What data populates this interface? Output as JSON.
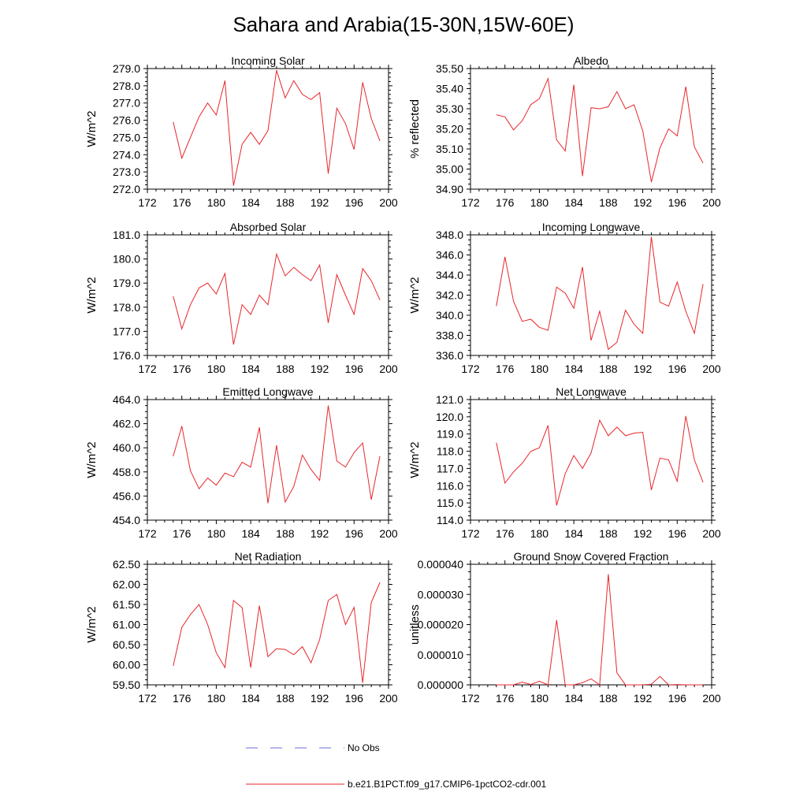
{
  "title": "Sahara and Arabia(15-30N,15W-60E)",
  "colors": {
    "model": "#e8262b",
    "obs": "#6b6bd6",
    "axis": "#000000"
  },
  "legend": {
    "items": [
      {
        "label": "No Obs",
        "style": "dashed",
        "color": "#6b6bd6"
      },
      {
        "label": "b.e21.B1PCT.f09_g17.CMIP6-1pctCO2-cdr.001",
        "style": "solid",
        "color": "#e8262b"
      }
    ]
  },
  "chart_data": [
    {
      "type": "line",
      "title": "Incoming Solar",
      "ylabel": "W/m^2",
      "xlim": [
        172,
        200
      ],
      "ylim": [
        272.0,
        279.0
      ],
      "xticks": [
        172,
        176,
        180,
        184,
        188,
        192,
        196,
        200
      ],
      "yticks": [
        "272.0",
        "273.0",
        "274.0",
        "275.0",
        "276.0",
        "277.0",
        "278.0",
        "279.0"
      ],
      "x": [
        175,
        176,
        177,
        178,
        179,
        180,
        181,
        182,
        183,
        184,
        185,
        186,
        187,
        188,
        189,
        190,
        191,
        192,
        193,
        194,
        195,
        196,
        197,
        198,
        199
      ],
      "series": [
        {
          "values": [
            275.9,
            273.8,
            275.0,
            276.2,
            277.0,
            276.3,
            278.3,
            272.2,
            274.6,
            275.3,
            274.6,
            275.4,
            278.9,
            277.3,
            278.3,
            277.5,
            277.2,
            277.6,
            272.9,
            276.7,
            275.8,
            274.3,
            278.2,
            276.1,
            274.8
          ]
        }
      ]
    },
    {
      "type": "line",
      "title": "Albedo",
      "ylabel": "% reflected",
      "xlim": [
        172,
        200
      ],
      "ylim": [
        34.9,
        35.5
      ],
      "xticks": [
        172,
        176,
        180,
        184,
        188,
        192,
        196,
        200
      ],
      "yticks": [
        "34.90",
        "35.00",
        "35.10",
        "35.20",
        "35.30",
        "35.40",
        "35.50"
      ],
      "x": [
        175,
        176,
        177,
        178,
        179,
        180,
        181,
        182,
        183,
        184,
        185,
        186,
        187,
        188,
        189,
        190,
        191,
        192,
        193,
        194,
        195,
        196,
        197,
        198,
        199
      ],
      "series": [
        {
          "values": [
            35.27,
            35.26,
            35.195,
            35.24,
            35.32,
            35.35,
            35.45,
            35.145,
            35.09,
            35.42,
            34.965,
            35.305,
            35.3,
            35.31,
            35.385,
            35.3,
            35.32,
            35.19,
            34.935,
            35.105,
            35.2,
            35.165,
            35.41,
            35.11,
            35.03
          ]
        }
      ]
    },
    {
      "type": "line",
      "title": "Absorbed Solar",
      "ylabel": "W/m^2",
      "xlim": [
        172,
        200
      ],
      "ylim": [
        176.0,
        181.0
      ],
      "xticks": [
        172,
        176,
        180,
        184,
        188,
        192,
        196,
        200
      ],
      "yticks": [
        "176.0",
        "177.0",
        "178.0",
        "179.0",
        "180.0",
        "181.0"
      ],
      "x": [
        175,
        176,
        177,
        178,
        179,
        180,
        181,
        182,
        183,
        184,
        185,
        186,
        187,
        188,
        189,
        190,
        191,
        192,
        193,
        194,
        195,
        196,
        197,
        198,
        199
      ],
      "series": [
        {
          "values": [
            178.45,
            177.1,
            178.1,
            178.8,
            179.0,
            178.55,
            179.4,
            176.45,
            178.1,
            177.7,
            178.5,
            178.1,
            180.2,
            179.3,
            179.65,
            179.35,
            179.1,
            179.75,
            177.35,
            179.35,
            178.5,
            177.7,
            179.6,
            179.1,
            178.3
          ]
        }
      ]
    },
    {
      "type": "line",
      "title": "Incoming Longwave",
      "ylabel": "W/m^2",
      "xlim": [
        172,
        200
      ],
      "ylim": [
        336.0,
        348.0
      ],
      "xticks": [
        172,
        176,
        180,
        184,
        188,
        192,
        196,
        200
      ],
      "yticks": [
        "336.0",
        "338.0",
        "340.0",
        "342.0",
        "344.0",
        "346.0",
        "348.0"
      ],
      "x": [
        175,
        176,
        177,
        178,
        179,
        180,
        181,
        182,
        183,
        184,
        185,
        186,
        187,
        188,
        189,
        190,
        191,
        192,
        193,
        194,
        195,
        196,
        197,
        198,
        199
      ],
      "series": [
        {
          "values": [
            340.9,
            345.8,
            341.4,
            339.4,
            339.6,
            338.8,
            338.5,
            342.8,
            342.2,
            340.7,
            344.8,
            337.5,
            340.4,
            336.6,
            337.3,
            340.5,
            339.1,
            338.2,
            347.8,
            341.3,
            340.9,
            343.3,
            340.4,
            338.2,
            343.1
          ]
        }
      ]
    },
    {
      "type": "line",
      "title": "Emitted Longwave",
      "ylabel": "W/m^2",
      "xlim": [
        172,
        200
      ],
      "ylim": [
        454.0,
        464.0
      ],
      "xticks": [
        172,
        176,
        180,
        184,
        188,
        192,
        196,
        200
      ],
      "yticks": [
        "454.0",
        "456.0",
        "458.0",
        "460.0",
        "462.0",
        "464.0"
      ],
      "x": [
        175,
        176,
        177,
        178,
        179,
        180,
        181,
        182,
        183,
        184,
        185,
        186,
        187,
        188,
        189,
        190,
        191,
        192,
        193,
        194,
        195,
        196,
        197,
        198,
        199
      ],
      "series": [
        {
          "values": [
            459.3,
            461.8,
            458.1,
            456.6,
            457.5,
            456.9,
            457.9,
            457.6,
            458.8,
            458.4,
            461.7,
            455.4,
            460.2,
            455.5,
            456.8,
            459.4,
            458.2,
            457.3,
            463.5,
            458.9,
            458.4,
            459.6,
            460.4,
            455.7,
            459.3
          ]
        }
      ]
    },
    {
      "type": "line",
      "title": "Net Longwave",
      "ylabel": "W/m^2",
      "xlim": [
        172,
        200
      ],
      "ylim": [
        114.0,
        121.0
      ],
      "xticks": [
        172,
        176,
        180,
        184,
        188,
        192,
        196,
        200
      ],
      "yticks": [
        "114.0",
        "115.0",
        "116.0",
        "117.0",
        "118.0",
        "119.0",
        "120.0",
        "121.0"
      ],
      "x": [
        175,
        176,
        177,
        178,
        179,
        180,
        181,
        182,
        183,
        184,
        185,
        186,
        187,
        188,
        189,
        190,
        191,
        192,
        193,
        194,
        195,
        196,
        197,
        198,
        199
      ],
      "series": [
        {
          "values": [
            118.5,
            116.15,
            116.8,
            117.3,
            118.0,
            118.2,
            119.5,
            114.85,
            116.7,
            117.75,
            117.0,
            117.9,
            119.8,
            118.9,
            119.4,
            118.9,
            119.05,
            119.1,
            115.75,
            117.6,
            117.5,
            116.25,
            120.05,
            117.5,
            116.2
          ]
        }
      ]
    },
    {
      "type": "line",
      "title": "Net Radiation",
      "ylabel": "W/m^2",
      "xlim": [
        172,
        200
      ],
      "ylim": [
        59.5,
        62.5
      ],
      "xticks": [
        172,
        176,
        180,
        184,
        188,
        192,
        196,
        200
      ],
      "yticks": [
        "59.50",
        "60.00",
        "60.50",
        "61.00",
        "61.50",
        "62.00",
        "62.50"
      ],
      "x": [
        175,
        176,
        177,
        178,
        179,
        180,
        181,
        182,
        183,
        184,
        185,
        186,
        187,
        188,
        189,
        190,
        191,
        192,
        193,
        194,
        195,
        196,
        197,
        198,
        199
      ],
      "series": [
        {
          "values": [
            59.97,
            60.93,
            61.25,
            61.5,
            61.0,
            60.3,
            59.93,
            61.6,
            61.42,
            59.93,
            61.47,
            60.2,
            60.4,
            60.38,
            60.25,
            60.45,
            60.05,
            60.63,
            61.6,
            61.75,
            61.0,
            61.43,
            59.55,
            61.55,
            62.05
          ]
        }
      ]
    },
    {
      "type": "line",
      "title": "Ground Snow Covered Fraction",
      "ylabel": "unitless",
      "xlim": [
        172,
        200
      ],
      "ylim": [
        0.0,
        4e-05
      ],
      "xticks": [
        172,
        176,
        180,
        184,
        188,
        192,
        196,
        200
      ],
      "yticks": [
        "0.000000",
        "0.000010",
        "0.000020",
        "0.000030",
        "0.000040"
      ],
      "x": [
        175,
        176,
        177,
        178,
        179,
        180,
        181,
        182,
        183,
        184,
        185,
        186,
        187,
        188,
        189,
        190,
        191,
        192,
        193,
        194,
        195,
        196,
        197,
        198,
        199
      ],
      "series": [
        {
          "values": [
            0,
            0,
            0,
            9e-07,
            1e-07,
            1.2e-06,
            0,
            2.15e-05,
            0,
            0,
            7e-07,
            2e-06,
            0,
            3.67e-05,
            4e-06,
            0,
            0,
            0,
            2e-07,
            2.8e-06,
            0,
            1e-07,
            0,
            0,
            0
          ]
        }
      ]
    }
  ]
}
